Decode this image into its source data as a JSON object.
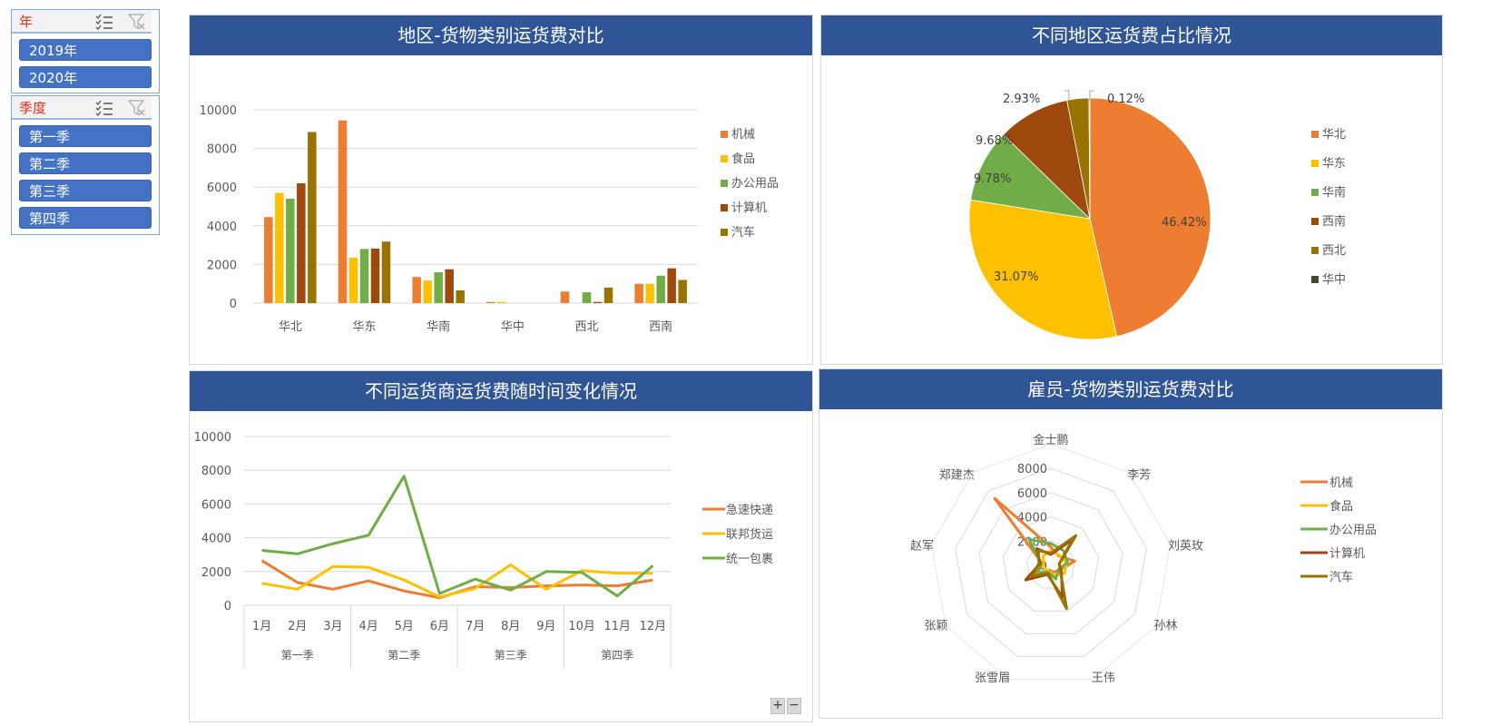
{
  "slicers": {
    "year": {
      "title": "年",
      "items": [
        "2019年",
        "2020年"
      ]
    },
    "quarter": {
      "title": "季度",
      "items": [
        "第一季",
        "第二季",
        "第三季",
        "第四季"
      ]
    }
  },
  "icons": {
    "multi_select": "multi-select-icon",
    "clear_filter": "clear-filter-icon"
  },
  "colors": {
    "header": "#2f5597",
    "slicer_item": "#4472c4",
    "slicer_title": "#e0301e",
    "orange": "#ed7d31",
    "yellow": "#ffc000",
    "green": "#70ad47",
    "brown": "#9e480e",
    "olive": "#997300",
    "dark": "#43472e"
  },
  "panels": {
    "bar": {
      "title": "地区-货物类别运货费对比"
    },
    "pie": {
      "title": "不同地区运货费占比情况"
    },
    "line": {
      "title": "不同运货商运货费随时间变化情况"
    },
    "radar": {
      "title": "雇员-货物类别运货费对比"
    }
  },
  "zoom_controls": {
    "plus": "+",
    "minus": "−"
  },
  "chart_data": [
    {
      "type": "bar",
      "title": "地区-货物类别运货费对比",
      "categories": [
        "华北",
        "华东",
        "华南",
        "华中",
        "西北",
        "西南"
      ],
      "series": [
        {
          "name": "机械",
          "color": "#ed7d31",
          "values": [
            4450,
            9450,
            1350,
            60,
            600,
            1000
          ]
        },
        {
          "name": "食品",
          "color": "#ffc000",
          "values": [
            5700,
            2350,
            1170,
            60,
            0,
            1000
          ]
        },
        {
          "name": "办公用品",
          "color": "#70ad47",
          "values": [
            5400,
            2800,
            1600,
            0,
            560,
            1420
          ]
        },
        {
          "name": "计算机",
          "color": "#9e480e",
          "values": [
            6200,
            2820,
            1750,
            0,
            60,
            1800
          ]
        },
        {
          "name": "汽车",
          "color": "#997300",
          "values": [
            8850,
            3180,
            660,
            0,
            800,
            1200
          ]
        }
      ],
      "yticks": [
        0,
        2000,
        4000,
        6000,
        8000,
        10000
      ],
      "ylim": [
        0,
        10000
      ],
      "legend_position": "right",
      "grid": true
    },
    {
      "type": "pie",
      "title": "不同地区运货费占比情况",
      "slices": [
        {
          "name": "华北",
          "value": 46.42,
          "label": "46.42%",
          "color": "#ed7d31"
        },
        {
          "name": "华东",
          "value": 31.07,
          "label": "31.07%",
          "color": "#ffc000"
        },
        {
          "name": "华南",
          "value": 9.78,
          "label": "9.78%",
          "color": "#70ad47"
        },
        {
          "name": "西南",
          "value": 9.68,
          "label": "9.68%",
          "color": "#9e480e"
        },
        {
          "name": "西北",
          "value": 2.93,
          "label": "2.93%",
          "color": "#997300"
        },
        {
          "name": "华中",
          "value": 0.12,
          "label": "0.12%",
          "color": "#43472e"
        }
      ],
      "legend_position": "right"
    },
    {
      "type": "line",
      "title": "不同运货商运货费随时间变化情况",
      "categories": [
        "1月",
        "2月",
        "3月",
        "4月",
        "5月",
        "6月",
        "7月",
        "8月",
        "9月",
        "10月",
        "11月",
        "12月"
      ],
      "groups": [
        {
          "name": "第一季",
          "span": 3
        },
        {
          "name": "第二季",
          "span": 3
        },
        {
          "name": "第三季",
          "span": 3
        },
        {
          "name": "第四季",
          "span": 3
        }
      ],
      "series": [
        {
          "name": "急速快递",
          "color": "#ed7d31",
          "values": [
            2650,
            1350,
            950,
            1450,
            850,
            450,
            1100,
            1050,
            1150,
            1200,
            1150,
            1500
          ]
        },
        {
          "name": "联邦货运",
          "color": "#ffc000",
          "values": [
            1300,
            950,
            2300,
            2250,
            1500,
            500,
            1000,
            2400,
            950,
            2050,
            1900,
            1900
          ]
        },
        {
          "name": "统一包裹",
          "color": "#70ad47",
          "values": [
            3250,
            3050,
            3650,
            4150,
            7650,
            700,
            1550,
            900,
            2000,
            1950,
            550,
            2350
          ]
        }
      ],
      "yticks": [
        0,
        2000,
        4000,
        6000,
        8000,
        10000
      ],
      "ylim": [
        0,
        10000
      ],
      "legend_position": "right",
      "grid": true
    },
    {
      "type": "radar",
      "title": "雇员-货物类别运货费对比",
      "categories": [
        "金士鹏",
        "李芳",
        "刘英玫",
        "孙林",
        "王伟",
        "张雪眉",
        "张颖",
        "赵军",
        "郑建杰"
      ],
      "series": [
        {
          "name": "机械",
          "color": "#ed7d31",
          "values": [
            1500,
            1000,
            2000,
            800,
            600,
            400,
            1500,
            700,
            7200
          ]
        },
        {
          "name": "食品",
          "color": "#ffc000",
          "values": [
            1200,
            1100,
            1300,
            1300,
            900,
            500,
            600,
            600,
            1000
          ]
        },
        {
          "name": "办公用品",
          "color": "#70ad47",
          "values": [
            1800,
            1600,
            1400,
            700,
            1200,
            600,
            1200,
            800,
            2800
          ]
        },
        {
          "name": "计算机",
          "color": "#9e480e",
          "values": [
            900,
            2800,
            700,
            1000,
            2800,
            800,
            2400,
            900,
            1800
          ]
        },
        {
          "name": "汽车",
          "color": "#997300",
          "values": [
            1000,
            3200,
            700,
            900,
            3800,
            700,
            1800,
            1000,
            1600
          ]
        }
      ],
      "rticks": [
        0,
        2000,
        4000,
        6000,
        8000
      ],
      "rlim": [
        0,
        8000
      ],
      "legend_position": "right"
    }
  ]
}
